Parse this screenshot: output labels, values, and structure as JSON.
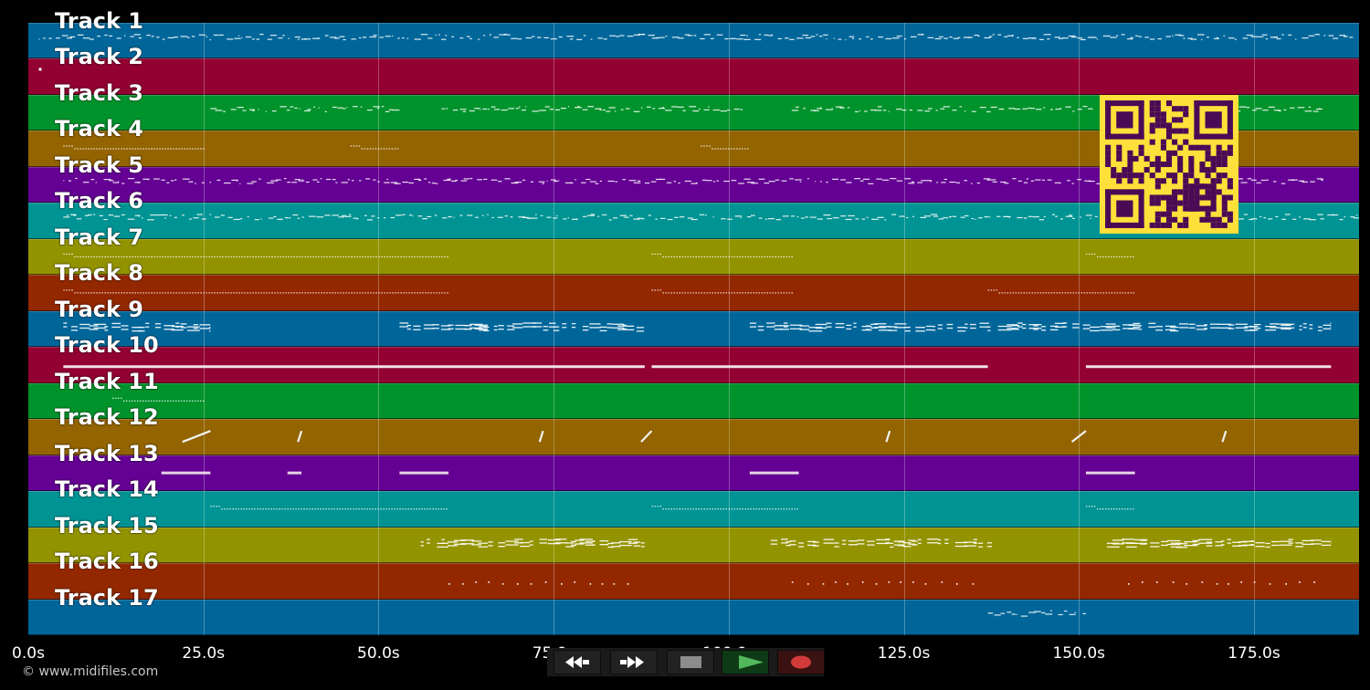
{
  "window": {
    "copyright": "© www.midifiles.com"
  },
  "tracks": [
    {
      "label": "Track 1",
      "color": "#00669a"
    },
    {
      "label": "Track 2",
      "color": "#930032"
    },
    {
      "label": "Track 3",
      "color": "#00932b"
    },
    {
      "label": "Track 4",
      "color": "#936400"
    },
    {
      "label": "Track 5",
      "color": "#640093"
    },
    {
      "label": "Track 6",
      "color": "#009393"
    },
    {
      "label": "Track 7",
      "color": "#939300"
    },
    {
      "label": "Track 8",
      "color": "#932800"
    },
    {
      "label": "Track 9",
      "color": "#00669a"
    },
    {
      "label": "Track 10",
      "color": "#930032"
    },
    {
      "label": "Track 11",
      "color": "#00932b"
    },
    {
      "label": "Track 12",
      "color": "#936400"
    },
    {
      "label": "Track 13",
      "color": "#640093"
    },
    {
      "label": "Track 14",
      "color": "#009393"
    },
    {
      "label": "Track 15",
      "color": "#939300"
    },
    {
      "label": "Track 16",
      "color": "#932800"
    },
    {
      "label": "Track 17",
      "color": "#00669a"
    }
  ],
  "timeline": {
    "min_seconds": 0,
    "max_seconds": 190,
    "ticks": [
      {
        "seconds": 0,
        "label": "0.0s"
      },
      {
        "seconds": 25,
        "label": "25.0s"
      },
      {
        "seconds": 50,
        "label": "50.0s"
      },
      {
        "seconds": 75,
        "label": "75.0s"
      },
      {
        "seconds": 100,
        "label": "100.0s"
      },
      {
        "seconds": 125,
        "label": "125.0s"
      },
      {
        "seconds": 150,
        "label": "150.0s"
      },
      {
        "seconds": 175,
        "label": "175.0s"
      }
    ]
  },
  "note_segments": [
    {
      "track": 1,
      "start": 1.5,
      "end": 189.5,
      "style": "dense"
    },
    {
      "track": 2,
      "start": 1.5,
      "end": 2.0,
      "style": "dot"
    },
    {
      "track": 3,
      "start": 26,
      "end": 53,
      "style": "dense"
    },
    {
      "track": 3,
      "start": 59,
      "end": 102,
      "style": "dense"
    },
    {
      "track": 3,
      "start": 109,
      "end": 152,
      "style": "dense"
    },
    {
      "track": 3,
      "start": 153,
      "end": 185,
      "style": "dense"
    },
    {
      "track": 4,
      "start": 5,
      "end": 25,
      "style": "dots"
    },
    {
      "track": 4,
      "start": 46,
      "end": 53,
      "style": "dots"
    },
    {
      "track": 4,
      "start": 96,
      "end": 103,
      "style": "dots"
    },
    {
      "track": 5,
      "start": 5,
      "end": 185,
      "style": "dense"
    },
    {
      "track": 6,
      "start": 5,
      "end": 190,
      "style": "dense"
    },
    {
      "track": 7,
      "start": 5,
      "end": 60,
      "style": "dots"
    },
    {
      "track": 7,
      "start": 89,
      "end": 109,
      "style": "dots"
    },
    {
      "track": 7,
      "start": 151,
      "end": 158,
      "style": "dots"
    },
    {
      "track": 8,
      "start": 5,
      "end": 60,
      "style": "dots"
    },
    {
      "track": 8,
      "start": 89,
      "end": 109,
      "style": "dots"
    },
    {
      "track": 8,
      "start": 137,
      "end": 158,
      "style": "dots"
    },
    {
      "track": 9,
      "start": 5,
      "end": 26,
      "style": "double"
    },
    {
      "track": 9,
      "start": 53,
      "end": 88,
      "style": "double"
    },
    {
      "track": 9,
      "start": 103,
      "end": 186,
      "style": "double"
    },
    {
      "track": 10,
      "start": 5,
      "end": 88,
      "style": "thick"
    },
    {
      "track": 10,
      "start": 89,
      "end": 137,
      "style": "thick"
    },
    {
      "track": 10,
      "start": 151,
      "end": 186,
      "style": "thick"
    },
    {
      "track": 11,
      "start": 12,
      "end": 25,
      "style": "dots"
    },
    {
      "track": 12,
      "start": 22,
      "end": 26,
      "style": "slash"
    },
    {
      "track": 12,
      "start": 38.5,
      "end": 39,
      "style": "slash"
    },
    {
      "track": 12,
      "start": 73,
      "end": 73.5,
      "style": "slash"
    },
    {
      "track": 12,
      "start": 87.5,
      "end": 89,
      "style": "slash"
    },
    {
      "track": 12,
      "start": 122.5,
      "end": 123,
      "style": "slash"
    },
    {
      "track": 12,
      "start": 149,
      "end": 151,
      "style": "slash"
    },
    {
      "track": 12,
      "start": 170.5,
      "end": 171,
      "style": "slash"
    },
    {
      "track": 13,
      "start": 19,
      "end": 26,
      "style": "block"
    },
    {
      "track": 13,
      "start": 37,
      "end": 39,
      "style": "block"
    },
    {
      "track": 13,
      "start": 53,
      "end": 60,
      "style": "block"
    },
    {
      "track": 13,
      "start": 103,
      "end": 110,
      "style": "block"
    },
    {
      "track": 13,
      "start": 151,
      "end": 158,
      "style": "block"
    },
    {
      "track": 14,
      "start": 26,
      "end": 60,
      "style": "dots"
    },
    {
      "track": 14,
      "start": 89,
      "end": 110,
      "style": "dots"
    },
    {
      "track": 14,
      "start": 151,
      "end": 158,
      "style": "dots"
    },
    {
      "track": 15,
      "start": 56,
      "end": 88,
      "style": "double"
    },
    {
      "track": 15,
      "start": 106,
      "end": 138,
      "style": "double"
    },
    {
      "track": 15,
      "start": 154,
      "end": 186,
      "style": "double"
    },
    {
      "track": 16,
      "start": 60,
      "end": 86,
      "style": "sparse"
    },
    {
      "track": 16,
      "start": 109,
      "end": 136,
      "style": "sparse"
    },
    {
      "track": 16,
      "start": 157,
      "end": 184,
      "style": "sparse"
    },
    {
      "track": 17,
      "start": 137,
      "end": 151,
      "style": "dense"
    }
  ],
  "overlay": {
    "icon": "qr-code-icon",
    "color": "#ffe03a",
    "ink": "#4b0a55"
  },
  "transport": {
    "buttons": [
      {
        "name": "rewind-button",
        "icon": "rewind-icon"
      },
      {
        "name": "fast-forward-button",
        "icon": "fast-forward-icon"
      },
      {
        "name": "stop-button",
        "icon": "stop-icon"
      },
      {
        "name": "play-button",
        "icon": "play-icon",
        "active": true
      },
      {
        "name": "record-button",
        "icon": "record-icon"
      }
    ]
  }
}
